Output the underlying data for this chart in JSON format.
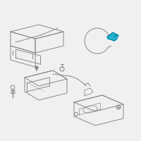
{
  "bg_color": "#f0f0f0",
  "line_color": "#888888",
  "blue_color": "#00aacc",
  "fig_bg": "#f0f0f0"
}
